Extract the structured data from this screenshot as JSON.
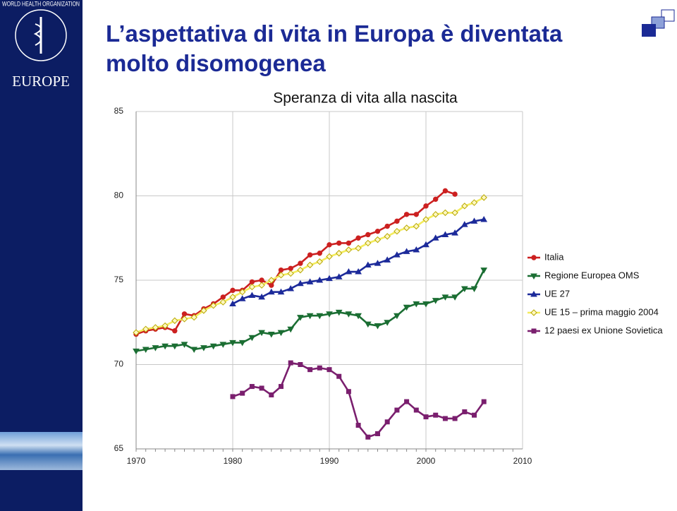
{
  "slide": {
    "title_lines": [
      "L’aspettativa di vita in Europa è diventata",
      "molto disomogenea"
    ]
  },
  "logo": {
    "organization": "WORLD HEALTH ORGANIZATION",
    "region": "EUROPE"
  },
  "chart_data": {
    "type": "line",
    "title": "Speranza di vita alla nascita",
    "x": [
      1970,
      1971,
      1972,
      1973,
      1974,
      1975,
      1976,
      1977,
      1978,
      1979,
      1980,
      1981,
      1982,
      1983,
      1984,
      1985,
      1986,
      1987,
      1988,
      1989,
      1990,
      1991,
      1992,
      1993,
      1994,
      1995,
      1996,
      1997,
      1998,
      1999,
      2000,
      2001,
      2002,
      2003,
      2004,
      2005,
      2006
    ],
    "series": [
      {
        "name": "Italia",
        "color": "#cc2020",
        "marker": "circle",
        "values": [
          71.8,
          72.0,
          72.1,
          72.2,
          72.0,
          73.0,
          72.9,
          73.3,
          73.6,
          74.0,
          74.4,
          74.4,
          74.9,
          75.0,
          74.7,
          75.6,
          75.7,
          76.0,
          76.5,
          76.6,
          77.1,
          77.2,
          77.2,
          77.5,
          77.7,
          77.9,
          78.2,
          78.5,
          78.9,
          78.9,
          79.4,
          79.8,
          80.3,
          80.1,
          null,
          null,
          null
        ]
      },
      {
        "name": "Regione Europea OMS",
        "color": "#1b6e33",
        "marker": "triangle-down",
        "values": [
          70.8,
          70.9,
          71.0,
          71.1,
          71.1,
          71.2,
          70.9,
          71.0,
          71.1,
          71.2,
          71.3,
          71.3,
          71.6,
          71.9,
          71.8,
          71.9,
          72.1,
          72.8,
          72.9,
          72.9,
          73.0,
          73.1,
          73.0,
          72.9,
          72.4,
          72.3,
          72.5,
          72.9,
          73.4,
          73.6,
          73.6,
          73.8,
          74.0,
          74.0,
          74.5,
          74.5,
          75.6
        ]
      },
      {
        "name": "UE 27",
        "color": "#1c2a9a",
        "marker": "triangle-up",
        "values": [
          null,
          null,
          null,
          null,
          null,
          null,
          null,
          null,
          null,
          null,
          73.6,
          73.9,
          74.1,
          74.0,
          74.3,
          74.3,
          74.5,
          74.8,
          74.9,
          75.0,
          75.1,
          75.2,
          75.5,
          75.5,
          75.9,
          76.0,
          76.2,
          76.5,
          76.7,
          76.8,
          77.1,
          77.5,
          77.7,
          77.8,
          78.3,
          78.5,
          78.6
        ]
      },
      {
        "name": "UE 15 – prima maggio 2004",
        "color": "#f3ec5c",
        "marker": "diamond",
        "values": [
          71.9,
          72.1,
          72.2,
          72.3,
          72.6,
          72.7,
          72.8,
          73.2,
          73.5,
          73.7,
          74.0,
          74.3,
          74.6,
          74.7,
          75.0,
          75.3,
          75.4,
          75.6,
          75.9,
          76.1,
          76.4,
          76.6,
          76.8,
          76.9,
          77.2,
          77.4,
          77.6,
          77.9,
          78.1,
          78.2,
          78.6,
          78.9,
          79.0,
          79.0,
          79.4,
          79.6,
          79.9
        ]
      },
      {
        "name": "12 paesi ex Unione Sovietica",
        "color": "#7a1f6e",
        "marker": "square",
        "values": [
          null,
          null,
          null,
          null,
          null,
          null,
          null,
          null,
          null,
          null,
          68.1,
          68.3,
          68.7,
          68.6,
          68.2,
          68.7,
          70.1,
          70.0,
          69.7,
          69.8,
          69.7,
          69.3,
          68.4,
          66.4,
          65.7,
          65.9,
          66.6,
          67.3,
          67.8,
          67.3,
          66.9,
          67.0,
          66.8,
          66.8,
          67.2,
          67.0,
          67.8
        ]
      }
    ],
    "xlim": [
      1970,
      2010
    ],
    "xticks": [
      1970,
      1980,
      1990,
      2000,
      2010
    ],
    "ylim": [
      65,
      85
    ],
    "yticks": [
      65,
      70,
      75,
      80,
      85
    ],
    "grid": true,
    "legend": "right"
  }
}
